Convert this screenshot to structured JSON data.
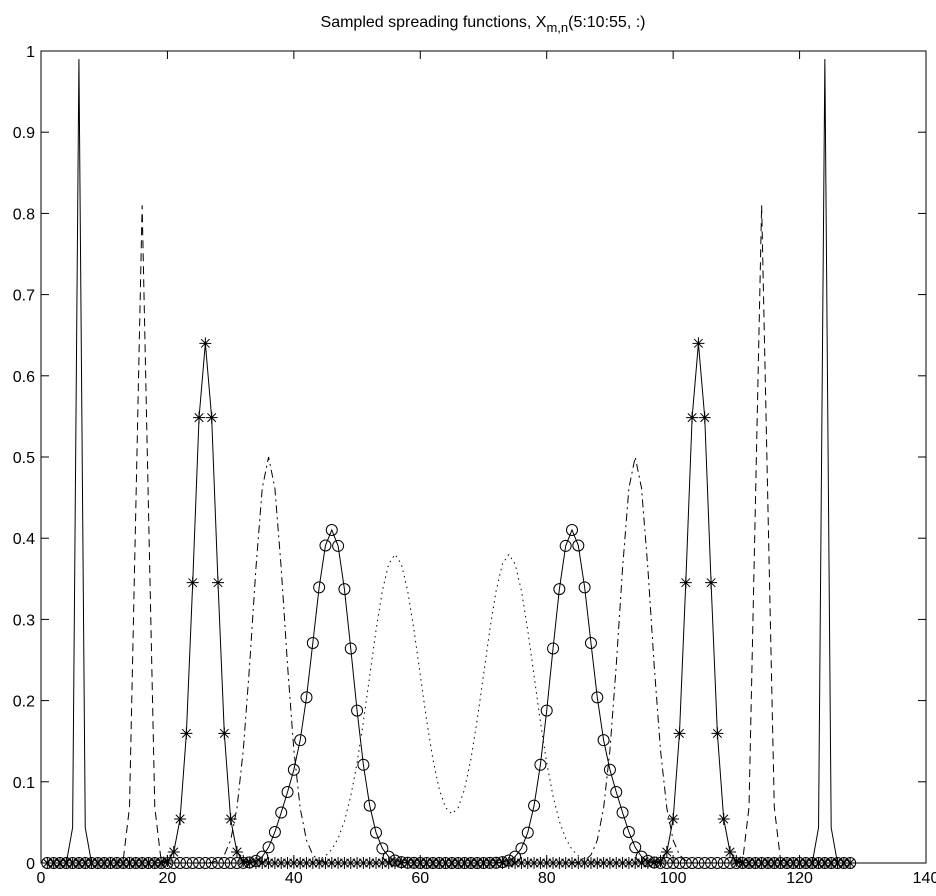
{
  "chart_data": {
    "type": "line",
    "title_main": "Sampled spreading functions, X",
    "title_sub": "m,n",
    "title_suffix": "(5:10:55, :)",
    "xlim": [
      0,
      140
    ],
    "ylim": [
      0,
      1
    ],
    "xticks": [
      0,
      20,
      40,
      60,
      80,
      100,
      120,
      140
    ],
    "yticks": [
      0,
      0.1,
      0.2,
      0.3,
      0.4,
      0.5,
      0.6,
      0.7,
      0.8,
      0.9,
      1
    ],
    "xtick_labels": [
      "0",
      "20",
      "40",
      "60",
      "80",
      "100",
      "120",
      "140"
    ],
    "ytick_labels": [
      "0",
      "0.1",
      "0.2",
      "0.3",
      "0.4",
      "0.5",
      "0.6",
      "0.7",
      "0.8",
      "0.9",
      "1"
    ],
    "grid": false,
    "series": [
      {
        "style": "solid",
        "marker": "none",
        "color": "#000000",
        "n": 128,
        "peaks": [
          {
            "x": 6,
            "v": 0.99,
            "w": 0.4
          },
          {
            "x": 124,
            "v": 0.99,
            "w": 0.4
          }
        ]
      },
      {
        "style": "dashed",
        "marker": "none",
        "color": "#000000",
        "n": 128,
        "peaks": [
          {
            "x": 16,
            "v": 0.81,
            "w": 0.9
          },
          {
            "x": 114,
            "v": 0.81,
            "w": 0.9
          }
        ]
      },
      {
        "style": "solid",
        "marker": "asterisk",
        "color": "#000000",
        "n": 128,
        "peaks": [
          {
            "x": 26,
            "v": 0.64,
            "w": 1.8
          },
          {
            "x": 104,
            "v": 0.64,
            "w": 1.8
          }
        ]
      },
      {
        "style": "dashdot",
        "marker": "none",
        "color": "#000000",
        "n": 128,
        "peaks": [
          {
            "x": 36,
            "v": 0.5,
            "w": 2.5
          },
          {
            "x": 94,
            "v": 0.5,
            "w": 2.5
          }
        ]
      },
      {
        "style": "solid",
        "marker": "circle",
        "color": "#000000",
        "n": 128,
        "peaks": [
          {
            "x": 46,
            "v": 0.41,
            "w": 3.2
          },
          {
            "x": 84,
            "v": 0.41,
            "w": 3.2
          },
          {
            "x": 39,
            "v": 0.05,
            "w": 2.0
          },
          {
            "x": 91,
            "v": 0.05,
            "w": 2.0
          }
        ]
      },
      {
        "style": "dotted",
        "marker": "none",
        "color": "#000000",
        "n": 128,
        "peaks": [
          {
            "x": 56,
            "v": 0.38,
            "w": 4.0
          },
          {
            "x": 74,
            "v": 0.38,
            "w": 4.0
          }
        ]
      }
    ]
  }
}
